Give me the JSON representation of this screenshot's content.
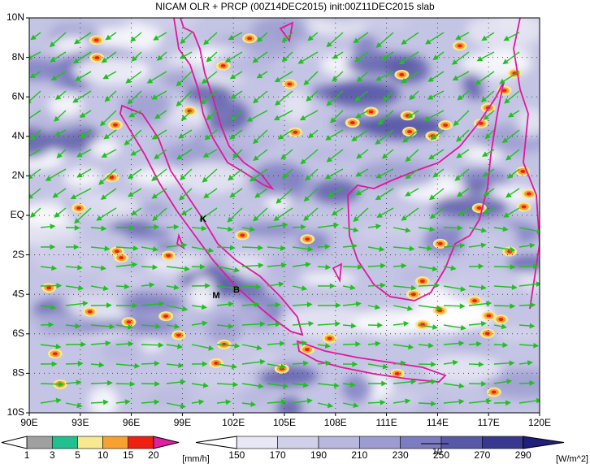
{
  "title": "NICAM OLR + PRCP (00Z14DEC2015) init:00Z11DEC2015 slab",
  "map": {
    "x_labels": [
      "90E",
      "93E",
      "96E",
      "99E",
      "102E",
      "105E",
      "108E",
      "111E",
      "114E",
      "117E",
      "120E"
    ],
    "y_labels": [
      "10N",
      "8N",
      "6N",
      "4N",
      "2N",
      "EQ",
      "2S",
      "4S",
      "6S",
      "8S",
      "10S"
    ],
    "markers": [
      "K",
      "M",
      "B"
    ]
  },
  "legend": {
    "precip": {
      "labels": [
        "1",
        "3",
        "5",
        "10",
        "15",
        "20"
      ],
      "unit": "[mm/h]",
      "colors": [
        "#ffffff",
        "#a0a0a0",
        "#20c090",
        "#f8e890",
        "#f8a030",
        "#f02010",
        "#e020a0"
      ]
    },
    "olr": {
      "labels": [
        "150",
        "170",
        "190",
        "210",
        "230",
        "250",
        "270",
        "290"
      ],
      "unit": "[W/m^2]",
      "colors": [
        "#ffffff",
        "#e8e8f4",
        "#d0d0ea",
        "#b8b8de",
        "#9c9cd0",
        "#7c7cc0",
        "#5858a8",
        "#383890",
        "#20207c"
      ]
    },
    "vector_scale": "10"
  }
}
